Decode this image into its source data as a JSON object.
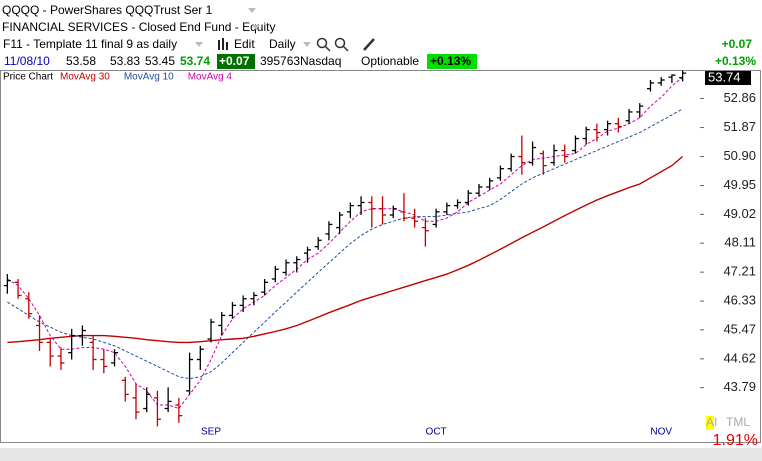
{
  "header": {
    "symbol": "QQQQ - PowerShares QQQTrust Ser 1",
    "sector": "FINANCIAL SERVICES - Closed End Fund - Equity",
    "template": "F11 - Template 11 final 9 as daily",
    "edit": "Edit",
    "period": "Daily",
    "date": "11/08/10",
    "open": 53.58,
    "high": 53.83,
    "low": 53.45,
    "close": 53.74,
    "change": "+0.07",
    "volume": 395763,
    "exchange": "Nasdaq",
    "optionable": "Optionable",
    "change_percent": "+0.13%"
  },
  "chart_data": {
    "type": "ohlc",
    "title": "Price Chart",
    "log_scale": true,
    "up_color": "#000000",
    "down_color": "#c00000",
    "categories": [
      null,
      null,
      null,
      null,
      null,
      null,
      null,
      null,
      null,
      null,
      null,
      null,
      null,
      null,
      null,
      null,
      null,
      null,
      null,
      "SEP",
      null,
      null,
      null,
      null,
      null,
      null,
      null,
      null,
      null,
      null,
      null,
      null,
      null,
      null,
      null,
      null,
      null,
      null,
      null,
      null,
      "OCT",
      null,
      null,
      null,
      null,
      null,
      null,
      null,
      null,
      null,
      null,
      null,
      null,
      null,
      null,
      null,
      null,
      null,
      null,
      null,
      null,
      "NOV",
      null,
      null
    ],
    "open": [
      46.8,
      46.9,
      46.4,
      45.6,
      45.1,
      44.7,
      44.8,
      45.3,
      45.1,
      44.6,
      44.5,
      44.0,
      43.5,
      43.2,
      43.5,
      43.2,
      43.3,
      43.7,
      44.6,
      45.2,
      45.6,
      45.9,
      46.2,
      46.4,
      46.6,
      47.0,
      47.2,
      47.5,
      47.8,
      48.0,
      48.4,
      48.6,
      49.1,
      49.3,
      49.4,
      49.2,
      49.0,
      49.1,
      48.9,
      48.6,
      48.7,
      49.1,
      49.3,
      49.4,
      49.7,
      49.9,
      50.2,
      50.5,
      50.9,
      50.7,
      51.0,
      50.7,
      51.1,
      51.1,
      51.5,
      51.8,
      51.8,
      52.0,
      52.1,
      52.4,
      53.2,
      53.4,
      53.6,
      53.58
    ],
    "high": [
      47.15,
      47.0,
      46.6,
      45.9,
      45.2,
      44.95,
      45.5,
      45.6,
      45.3,
      44.9,
      44.9,
      44.1,
      43.9,
      43.8,
      43.7,
      43.8,
      43.5,
      44.8,
      45.0,
      45.8,
      46.0,
      46.3,
      46.5,
      46.6,
      47.0,
      47.4,
      47.6,
      47.7,
      48.0,
      48.3,
      48.8,
      49.1,
      49.4,
      49.6,
      49.6,
      49.6,
      49.3,
      49.7,
      49.2,
      48.9,
      49.2,
      49.4,
      49.5,
      49.8,
      50.0,
      50.2,
      50.6,
      51.0,
      51.6,
      51.4,
      51.1,
      51.3,
      51.3,
      51.6,
      51.9,
      52.0,
      52.1,
      52.2,
      52.5,
      52.7,
      53.5,
      53.6,
      53.7,
      53.83
    ],
    "low": [
      46.55,
      46.4,
      45.8,
      44.85,
      44.4,
      44.3,
      44.6,
      45.0,
      44.3,
      44.2,
      44.4,
      43.4,
      42.9,
      43.1,
      42.7,
      43.1,
      42.8,
      43.6,
      44.3,
      45.1,
      45.3,
      45.8,
      46.0,
      46.2,
      46.5,
      46.9,
      47.1,
      47.2,
      47.5,
      47.9,
      48.2,
      48.4,
      48.9,
      49.0,
      48.6,
      48.7,
      48.9,
      48.8,
      48.6,
      48.0,
      48.6,
      49.0,
      49.2,
      49.3,
      49.6,
      49.8,
      50.1,
      50.4,
      50.3,
      50.6,
      50.3,
      50.6,
      50.7,
      51.0,
      51.3,
      51.4,
      51.6,
      51.7,
      52.0,
      52.2,
      53.1,
      53.3,
      53.4,
      53.45
    ],
    "close": [
      46.95,
      46.5,
      45.95,
      45.1,
      44.7,
      44.5,
      45.3,
      45.45,
      44.6,
      44.4,
      44.8,
      43.6,
      43.1,
      43.6,
      42.9,
      43.4,
      43.0,
      44.6,
      44.9,
      45.7,
      45.9,
      46.2,
      46.4,
      46.5,
      46.9,
      47.3,
      47.5,
      47.6,
      47.9,
      48.2,
      48.7,
      49.0,
      49.3,
      49.4,
      49.2,
      49.0,
      49.2,
      48.9,
      48.8,
      48.5,
      49.1,
      49.3,
      49.4,
      49.7,
      49.9,
      50.1,
      50.5,
      50.9,
      50.7,
      51.2,
      50.6,
      51.1,
      50.9,
      51.5,
      51.8,
      51.7,
      52.0,
      51.9,
      52.4,
      52.6,
      53.4,
      53.5,
      53.67,
      53.74
    ],
    "series": [
      {
        "name": "MovAvg 30",
        "color": "#c00000",
        "style": "solid",
        "values": [
          45.1,
          45.12,
          45.15,
          45.18,
          45.22,
          45.25,
          45.28,
          45.3,
          45.3,
          45.3,
          45.28,
          45.25,
          45.22,
          45.18,
          45.15,
          45.12,
          45.1,
          45.1,
          45.12,
          45.15,
          45.18,
          45.2,
          45.22,
          45.28,
          45.35,
          45.42,
          45.5,
          45.6,
          45.72,
          45.85,
          45.98,
          46.1,
          46.22,
          46.35,
          46.45,
          46.55,
          46.65,
          46.75,
          46.85,
          46.95,
          47.05,
          47.15,
          47.28,
          47.42,
          47.58,
          47.75,
          47.92,
          48.1,
          48.28,
          48.45,
          48.62,
          48.8,
          48.98,
          49.15,
          49.32,
          49.48,
          49.62,
          49.75,
          49.88,
          50.0,
          50.2,
          50.4,
          50.6,
          50.9
        ]
      },
      {
        "name": "MovAvg 10",
        "color": "#1f4e9c",
        "style": "dashed",
        "values": [
          46.3,
          46.1,
          45.9,
          45.7,
          45.55,
          45.4,
          45.3,
          45.25,
          45.2,
          45.1,
          45.0,
          44.85,
          44.7,
          44.55,
          44.4,
          44.25,
          44.1,
          44.05,
          44.1,
          44.25,
          44.5,
          44.8,
          45.1,
          45.4,
          45.7,
          46.0,
          46.3,
          46.6,
          46.9,
          47.2,
          47.5,
          47.8,
          48.1,
          48.35,
          48.55,
          48.7,
          48.8,
          48.9,
          48.95,
          48.95,
          48.95,
          49.0,
          49.05,
          49.1,
          49.2,
          49.3,
          49.5,
          49.75,
          50.0,
          50.2,
          50.35,
          50.5,
          50.65,
          50.8,
          50.95,
          51.1,
          51.25,
          51.4,
          51.55,
          51.7,
          51.9,
          52.1,
          52.3,
          52.5
        ]
      },
      {
        "name": "MovAvg 4",
        "color": "#d000b0",
        "style": "dashed",
        "values": [
          47.0,
          46.8,
          46.4,
          45.9,
          45.3,
          44.9,
          44.9,
          44.95,
          44.95,
          44.9,
          44.8,
          44.4,
          43.9,
          43.7,
          43.3,
          43.3,
          43.2,
          43.6,
          44.0,
          44.6,
          45.3,
          45.8,
          46.1,
          46.3,
          46.5,
          46.8,
          47.05,
          47.3,
          47.6,
          47.8,
          48.1,
          48.45,
          48.8,
          49.1,
          49.2,
          49.2,
          49.2,
          49.1,
          49.0,
          48.8,
          48.8,
          48.9,
          49.1,
          49.4,
          49.6,
          49.8,
          50.0,
          50.3,
          50.6,
          50.8,
          50.85,
          50.9,
          50.95,
          51.0,
          51.3,
          51.5,
          51.75,
          51.85,
          52.0,
          52.2,
          52.6,
          52.9,
          53.3,
          53.58
        ]
      }
    ],
    "ylim": [
      42.6,
      53.85
    ],
    "yticks": [
      52.86,
      51.87,
      {
        "value": 50.9,
        "label": "50.90"
      },
      49.95,
      49.02,
      48.11,
      47.21,
      46.33,
      45.47,
      44.62,
      43.79
    ],
    "grid": false,
    "indicator": {
      "highlight": "AI",
      "tag": "TML",
      "percent": "1.91%"
    }
  }
}
